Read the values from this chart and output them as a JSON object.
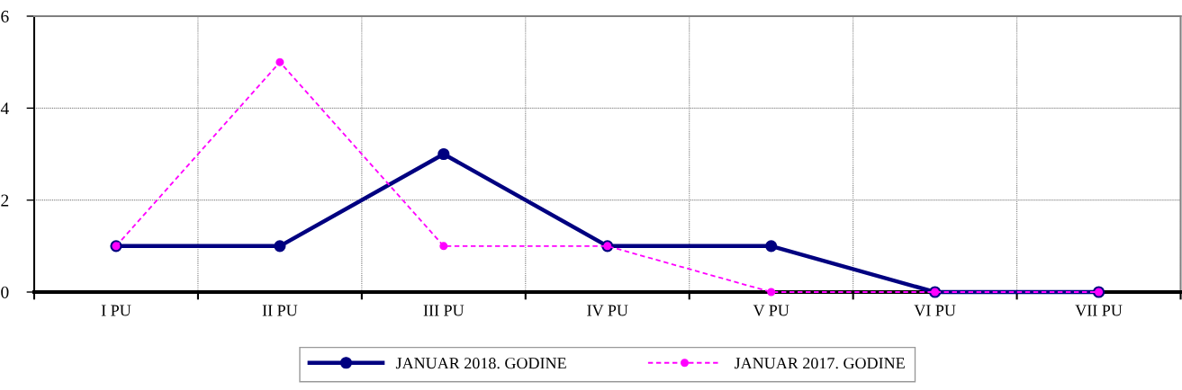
{
  "chart_data": {
    "type": "line",
    "categories": [
      "I PU",
      "II PU",
      "III PU",
      "IV PU",
      "V PU",
      "VI PU",
      "VII PU"
    ],
    "series": [
      {
        "name": "JANUAR 2018. GODINE",
        "color": "#000080",
        "values": [
          1,
          1,
          3,
          1,
          1,
          0,
          0
        ],
        "line_style": "solid"
      },
      {
        "name": "JANUAR 2017. GODINE",
        "color": "#ff00ff",
        "values": [
          1,
          5,
          1,
          1,
          0,
          0,
          0
        ],
        "line_style": "dashed"
      }
    ],
    "marker": "circle",
    "ylim": [
      0,
      6
    ],
    "yticks": [
      0,
      2,
      4,
      6
    ],
    "grid": true,
    "legend": "bottom"
  }
}
